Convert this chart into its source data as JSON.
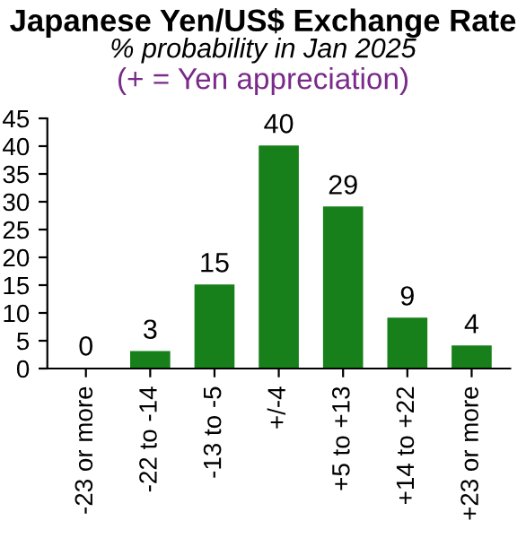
{
  "chart_data": {
    "type": "bar",
    "title": "Japanese Yen/US$ Exchange Rate",
    "subtitle": "% probability in Jan 2025",
    "annotations": [
      "(+ = Yen appreciation)"
    ],
    "categories": [
      "-23 or more",
      "-22 to -14",
      "-13 to -5",
      "+/-4",
      "+5 to +13",
      "+14 to +22",
      "+23 or more"
    ],
    "values": [
      0,
      3,
      15,
      40,
      29,
      9,
      4
    ],
    "color": "#17801a",
    "ylim": [
      0,
      45
    ],
    "yticks": [
      0,
      5,
      10,
      15,
      20,
      25,
      30,
      35,
      40,
      45
    ],
    "grid": false,
    "data_labels": true
  }
}
